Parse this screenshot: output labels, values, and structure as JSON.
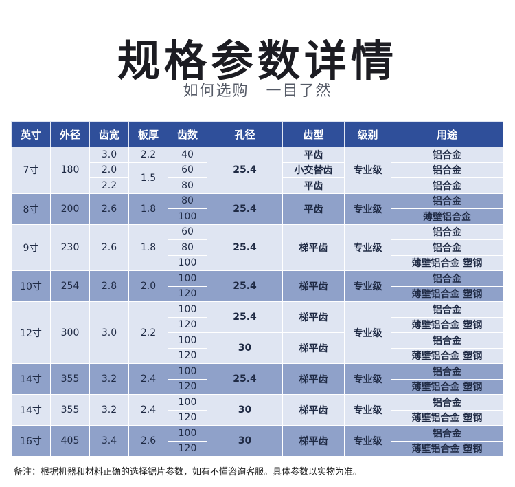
{
  "title": "规格参数详情",
  "subtitle": [
    "如何选购",
    "一目了然"
  ],
  "table": {
    "headers": [
      "英寸",
      "外径",
      "齿宽",
      "板厚",
      "齿数",
      "孔径",
      "齿型",
      "级别",
      "用途"
    ],
    "rows": [
      [
        "7寸",
        "180",
        "3.0",
        "2.2",
        "40",
        "25.4",
        "平齿",
        "专业级",
        "铝合金"
      ],
      [
        "",
        "",
        "2.0",
        "1.5",
        "60",
        "",
        "小交替齿",
        "",
        "铝合金"
      ],
      [
        "",
        "",
        "2.2",
        "",
        "80",
        "",
        "平齿",
        "",
        "铝合金"
      ],
      [
        "8寸",
        "200",
        "2.6",
        "1.8",
        "80",
        "25.4",
        "平齿",
        "专业级",
        "铝合金"
      ],
      [
        "",
        "",
        "",
        "",
        "100",
        "",
        "",
        "",
        "薄壁铝合金"
      ],
      [
        "9寸",
        "230",
        "2.6",
        "1.8",
        "60",
        "25.4",
        "梯平齿",
        "专业级",
        "铝合金"
      ],
      [
        "",
        "",
        "",
        "",
        "80",
        "",
        "",
        "",
        "铝合金"
      ],
      [
        "",
        "",
        "",
        "",
        "100",
        "",
        "",
        "",
        "薄壁铝合金 塑钢"
      ],
      [
        "10寸",
        "254",
        "2.8",
        "2.0",
        "100",
        "25.4",
        "梯平齿",
        "专业级",
        "铝合金"
      ],
      [
        "",
        "",
        "",
        "",
        "120",
        "",
        "",
        "",
        "薄壁铝合金 塑钢"
      ],
      [
        "12寸",
        "300",
        "3.0",
        "2.2",
        "100",
        "25.4",
        "梯平齿",
        "专业级",
        "铝合金"
      ],
      [
        "",
        "",
        "",
        "",
        "120",
        "",
        "",
        "",
        "薄壁铝合金 塑钢"
      ],
      [
        "",
        "",
        "",
        "",
        "100",
        "30",
        "梯平齿",
        "",
        "铝合金"
      ],
      [
        "",
        "",
        "",
        "",
        "120",
        "",
        "",
        "",
        "薄壁铝合金 塑钢"
      ],
      [
        "14寸",
        "355",
        "3.2",
        "2.4",
        "100",
        "25.4",
        "梯平齿",
        "专业级",
        "铝合金"
      ],
      [
        "",
        "",
        "",
        "",
        "120",
        "",
        "",
        "",
        "薄壁铝合金 塑钢"
      ],
      [
        "14寸",
        "355",
        "3.2",
        "2.4",
        "100",
        "30",
        "梯平齿",
        "专业级",
        "铝合金"
      ],
      [
        "",
        "",
        "",
        "",
        "120",
        "",
        "",
        "",
        "薄壁铝合金 塑钢"
      ],
      [
        "16寸",
        "405",
        "3.4",
        "2.6",
        "100",
        "30",
        "梯平齿",
        "专业级",
        "铝合金"
      ],
      [
        "",
        "",
        "",
        "",
        "120",
        "",
        "",
        "",
        "薄壁铝合金 塑钢"
      ]
    ]
  },
  "note": "备注：根据机器和材料正确的选择锯片参数，如有不懂咨询客服。具体参数以实物为准。"
}
